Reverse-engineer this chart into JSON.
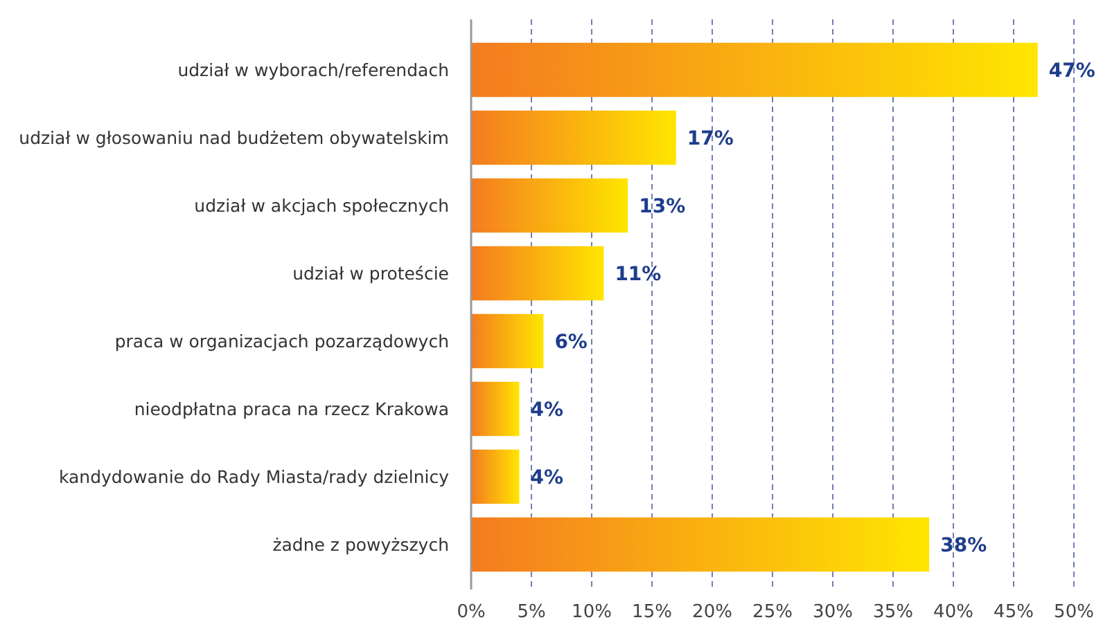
{
  "chart_data": {
    "type": "bar",
    "orientation": "horizontal",
    "categories": [
      "udział w wyborach/referendach",
      "udział w głosowaniu nad budżetem obywatelskim",
      "udział w akcjach społecznych",
      "udział w proteście",
      "praca w organizacjach pozarządowych",
      "nieodpłatna praca na rzecz Krakowa",
      "kandydowanie do Rady Miasta/rady dzielnicy",
      "żadne z powyższych"
    ],
    "values": [
      47,
      17,
      13,
      11,
      6,
      4,
      4,
      38
    ],
    "value_labels": [
      "47%",
      "17%",
      "13%",
      "11%",
      "6%",
      "4%",
      "4%",
      "38%"
    ],
    "color": "#f47b20",
    "xlim": [
      0,
      50
    ],
    "xticks": [
      {
        "value": 0,
        "label": "0%"
      },
      {
        "value": 5,
        "label": "5%"
      },
      {
        "value": 10,
        "label": "10%"
      },
      {
        "value": 15,
        "label": "15%"
      },
      {
        "value": 20,
        "label": "20%"
      },
      {
        "value": 25,
        "label": "25%"
      },
      {
        "value": 30,
        "label": "30%"
      },
      {
        "value": 35,
        "label": "35%"
      },
      {
        "value": 40,
        "label": "40%"
      },
      {
        "value": 45,
        "label": "45%"
      },
      {
        "value": 50,
        "label": "50%"
      }
    ],
    "grid": "x"
  }
}
